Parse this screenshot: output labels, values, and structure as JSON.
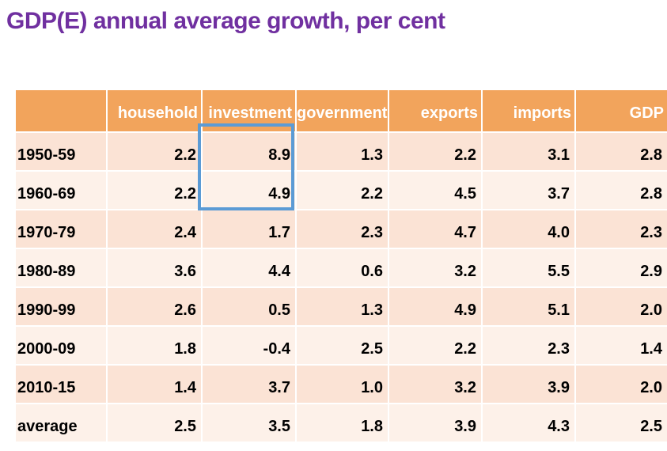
{
  "title": "GDP(E) annual average growth, per cent",
  "table": {
    "columns": [
      "",
      "household",
      "investment",
      "government",
      "exports",
      "imports",
      "GDP"
    ],
    "rows": [
      {
        "label": "1950-59",
        "values": [
          "2.2",
          "8.9",
          "1.3",
          "2.2",
          "3.1",
          "2.8"
        ]
      },
      {
        "label": "1960-69",
        "values": [
          "2.2",
          "4.9",
          "2.2",
          "4.5",
          "3.7",
          "2.8"
        ]
      },
      {
        "label": "1970-79",
        "values": [
          "2.4",
          "1.7",
          "2.3",
          "4.7",
          "4.0",
          "2.3"
        ]
      },
      {
        "label": "1980-89",
        "values": [
          "3.6",
          "4.4",
          "0.6",
          "3.2",
          "5.5",
          "2.9"
        ]
      },
      {
        "label": "1990-99",
        "values": [
          "2.6",
          "0.5",
          "1.3",
          "4.9",
          "5.1",
          "2.0"
        ]
      },
      {
        "label": "2000-09",
        "values": [
          "1.8",
          "-0.4",
          "2.5",
          "2.2",
          "2.3",
          "1.4"
        ]
      },
      {
        "label": "2010-15",
        "values": [
          "1.4",
          "3.7",
          "1.0",
          "3.2",
          "3.9",
          "2.0"
        ]
      },
      {
        "label": "average",
        "values": [
          "2.5",
          "3.5",
          "1.8",
          "3.9",
          "4.3",
          "2.5"
        ]
      }
    ]
  },
  "highlight": {
    "description": "blue rectangle around investment column values for 1950-59 and 1960-69",
    "column": "investment",
    "rows": [
      "1950-59",
      "1960-69"
    ]
  },
  "colors": {
    "title_text": "#7030A0",
    "header_bg": "#F2A45C",
    "header_text": "#FFFFFF",
    "row_band_dark": "#FBE3D5",
    "row_band_light": "#FDF1E9",
    "gridline": "#FFFFFF",
    "body_text": "#000000",
    "highlight_border": "#5B9BD5"
  },
  "chart_data": {
    "type": "table",
    "title": "GDP(E) annual average growth, per cent",
    "categories": [
      "1950-59",
      "1960-69",
      "1970-79",
      "1980-89",
      "1990-99",
      "2000-09",
      "2010-15",
      "average"
    ],
    "series": [
      {
        "name": "household",
        "values": [
          2.2,
          2.2,
          2.4,
          3.6,
          2.6,
          1.8,
          1.4,
          2.5
        ]
      },
      {
        "name": "investment",
        "values": [
          8.9,
          4.9,
          1.7,
          4.4,
          0.5,
          -0.4,
          3.7,
          3.5
        ]
      },
      {
        "name": "government",
        "values": [
          1.3,
          2.2,
          2.3,
          0.6,
          1.3,
          2.5,
          1.0,
          1.8
        ]
      },
      {
        "name": "exports",
        "values": [
          2.2,
          4.5,
          4.7,
          3.2,
          4.9,
          2.2,
          3.2,
          3.9
        ]
      },
      {
        "name": "imports",
        "values": [
          3.1,
          3.7,
          4.0,
          5.5,
          5.1,
          2.3,
          3.9,
          4.3
        ]
      },
      {
        "name": "GDP",
        "values": [
          2.8,
          2.8,
          2.3,
          2.9,
          2.0,
          1.4,
          2.0,
          2.5
        ]
      }
    ],
    "units": "per cent",
    "annotations": [
      "blue box highlights investment values 8.9 (1950-59) and 4.9 (1960-69)"
    ]
  }
}
